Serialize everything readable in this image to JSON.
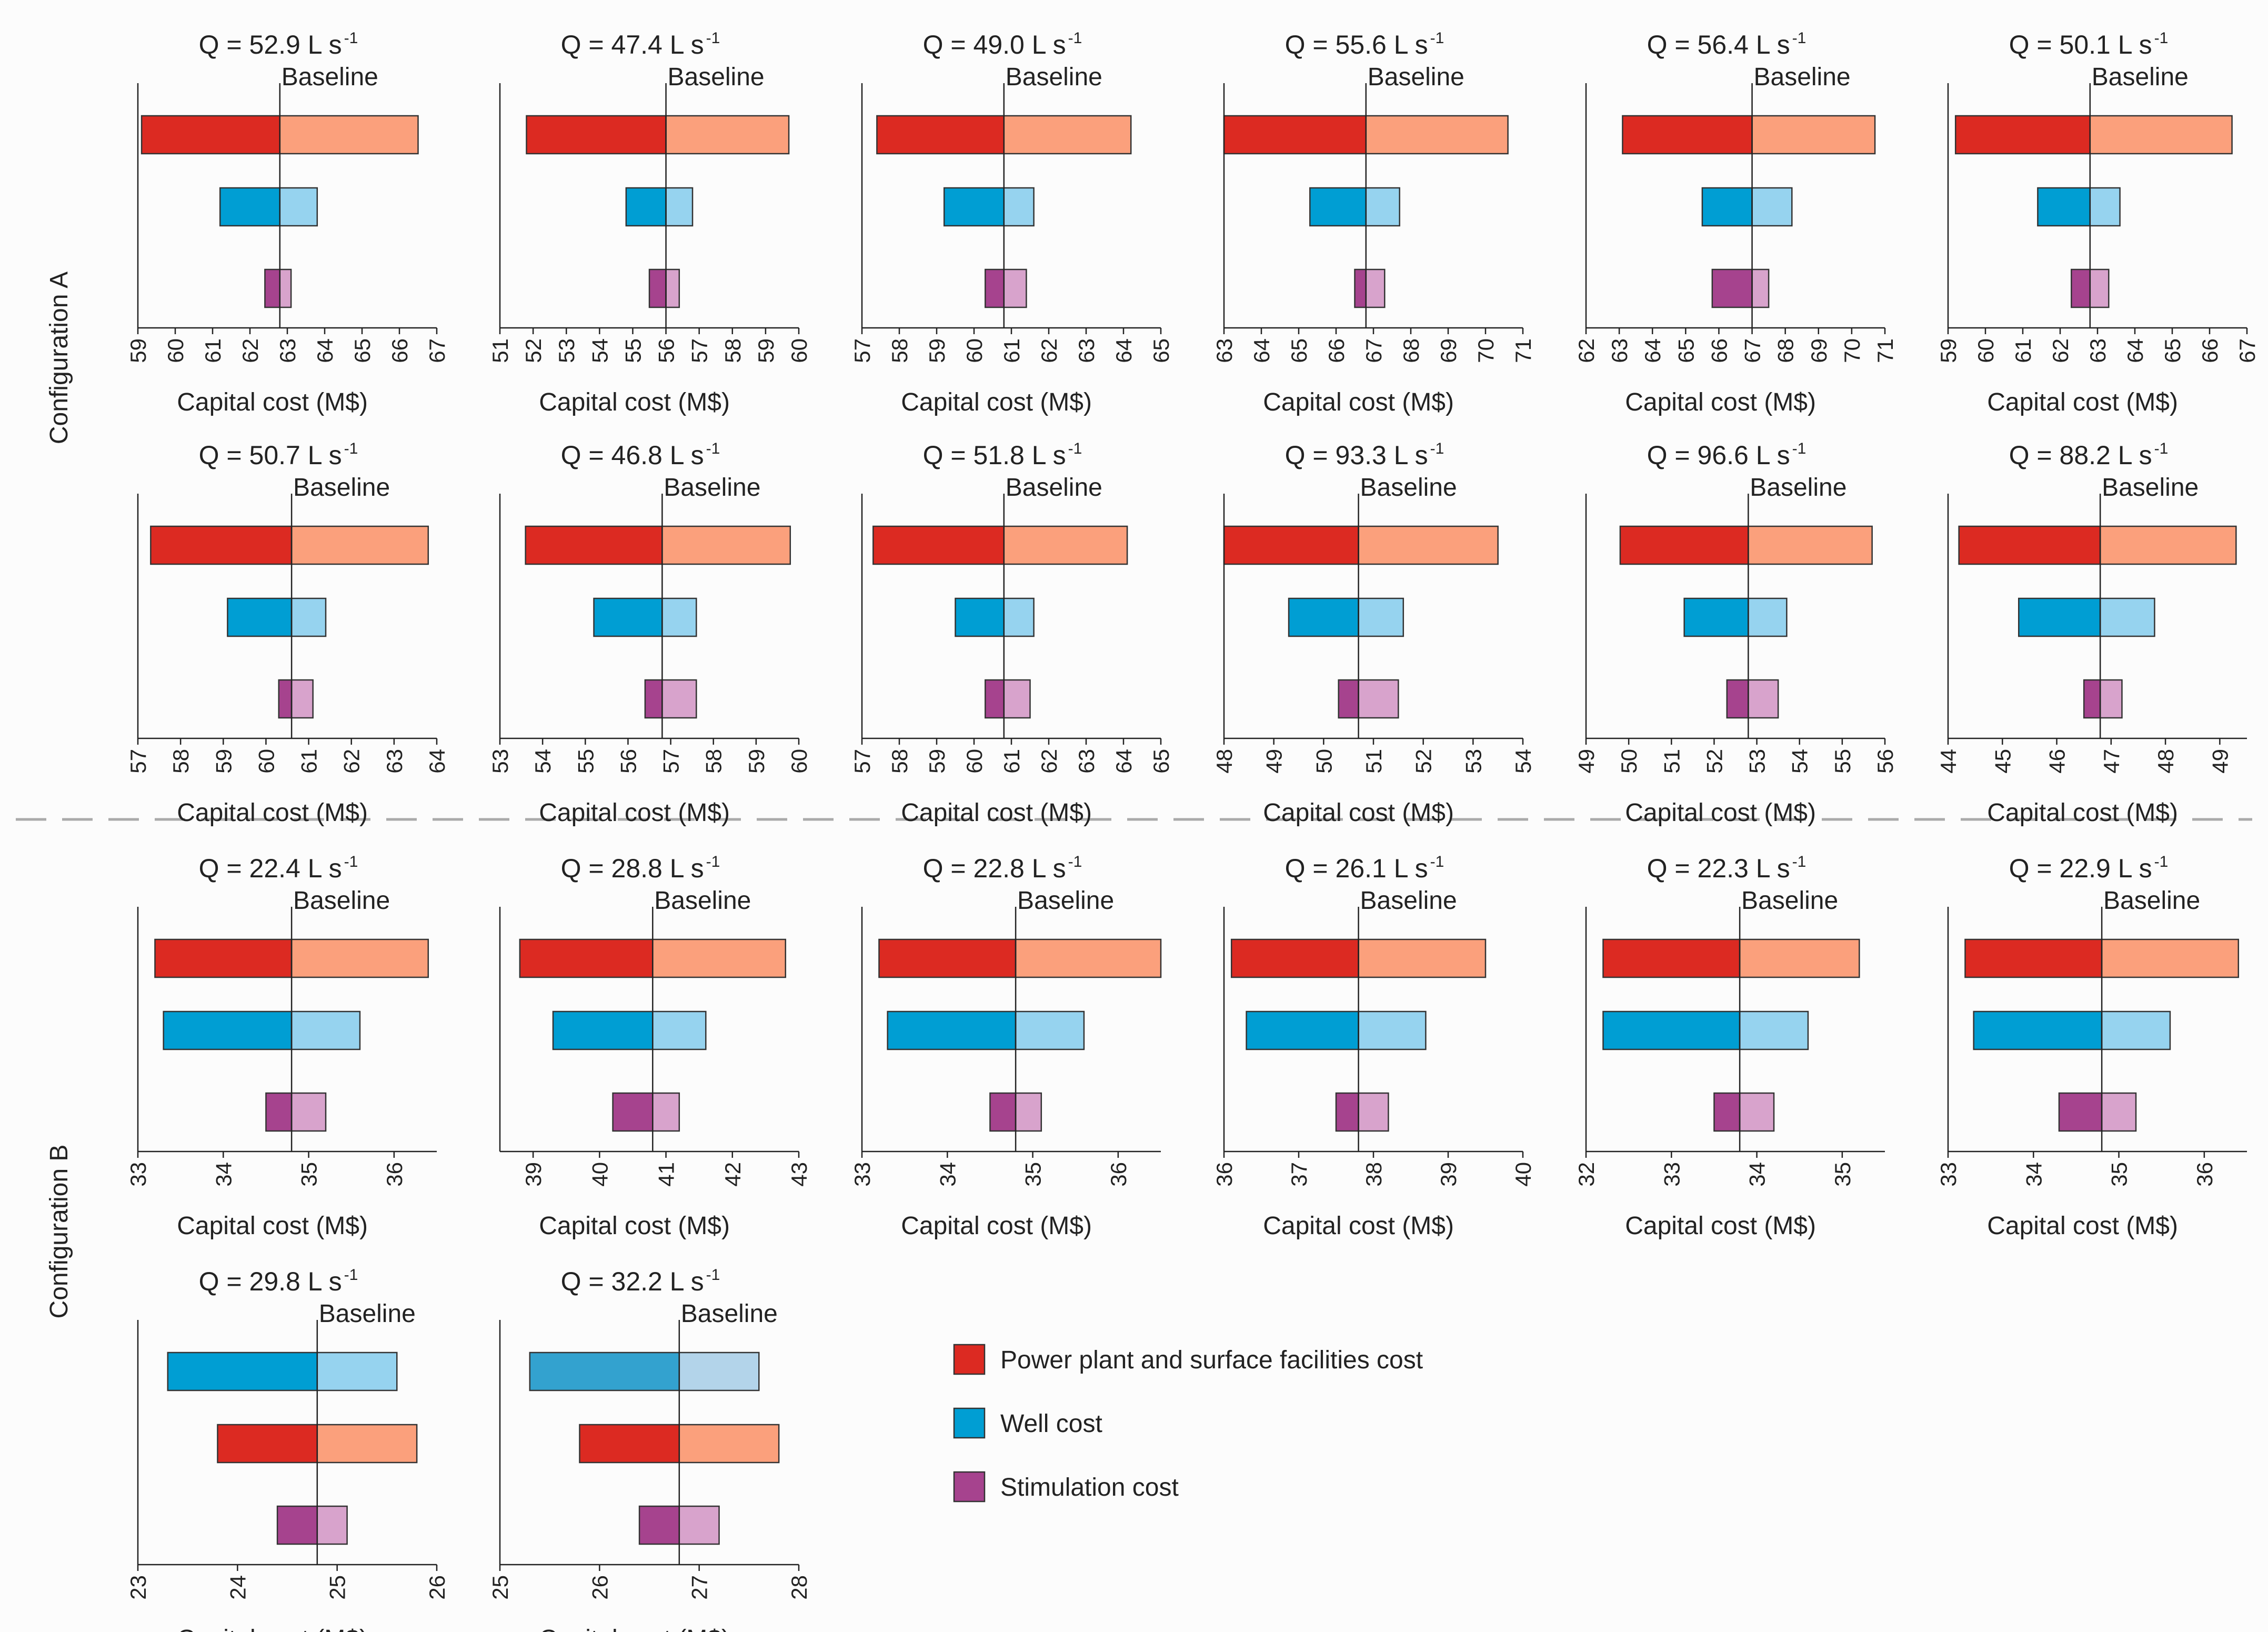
{
  "figure": {
    "config_a_label": "Configuration A",
    "config_b_label": "Configuration B",
    "legend": [
      {
        "key": "power",
        "label": "Power plant and surface facilities cost"
      },
      {
        "key": "well",
        "label": "Well cost"
      },
      {
        "key": "stim",
        "label": "Stimulation cost"
      }
    ],
    "colors": {
      "power": {
        "low": "#dc2a22",
        "high": "#fba07c"
      },
      "well": {
        "low": "#009ed3",
        "high": "#96d3ef"
      },
      "stim": {
        "low": "#a6438e",
        "high": "#d8a3cc"
      },
      "well_alt": {
        "low": "#33a2cf",
        "high": "#b3d4ea"
      },
      "divider": "#aaaaaa"
    }
  },
  "chart_data": [
    {
      "type": "bar",
      "config": "A",
      "title_prefix": "Q = 52.9 L s",
      "title_sup": "-1",
      "baseline_label": "Baseline",
      "xlabel": "Capital cost (M$)",
      "baseline": 62.8,
      "xlim": [
        59,
        67
      ],
      "ticks": [
        59,
        60,
        61,
        62,
        63,
        64,
        65,
        66,
        67
      ],
      "rows": [
        {
          "category": "power",
          "low": 59.1,
          "high": 66.5
        },
        {
          "category": "well",
          "low": 61.2,
          "high": 63.8
        },
        {
          "category": "stim",
          "low": 62.4,
          "high": 63.1
        }
      ]
    },
    {
      "type": "bar",
      "config": "A",
      "title_prefix": "Q = 47.4 L s",
      "title_sup": "-1",
      "baseline_label": "Baseline",
      "xlabel": "Capital cost (M$)",
      "baseline": 56.0,
      "xlim": [
        51,
        60
      ],
      "ticks": [
        51,
        52,
        53,
        54,
        55,
        56,
        57,
        58,
        59,
        60
      ],
      "rows": [
        {
          "category": "power",
          "low": 51.8,
          "high": 59.7
        },
        {
          "category": "well",
          "low": 54.8,
          "high": 56.8
        },
        {
          "category": "stim",
          "low": 55.5,
          "high": 56.4
        }
      ]
    },
    {
      "type": "bar",
      "config": "A",
      "title_prefix": "Q = 49.0 L s",
      "title_sup": "-1",
      "baseline_label": "Baseline",
      "xlabel": "Capital cost (M$)",
      "baseline": 60.8,
      "xlim": [
        57,
        65
      ],
      "ticks": [
        57,
        58,
        59,
        60,
        61,
        62,
        63,
        64,
        65
      ],
      "rows": [
        {
          "category": "power",
          "low": 57.4,
          "high": 64.2
        },
        {
          "category": "well",
          "low": 59.2,
          "high": 61.6
        },
        {
          "category": "stim",
          "low": 60.3,
          "high": 61.4
        }
      ]
    },
    {
      "type": "bar",
      "config": "A",
      "title_prefix": "Q = 55.6 L s",
      "title_sup": "-1",
      "baseline_label": "Baseline",
      "xlabel": "Capital cost (M$)",
      "baseline": 66.8,
      "xlim": [
        63,
        71
      ],
      "ticks": [
        63,
        64,
        65,
        66,
        67,
        68,
        69,
        70,
        71
      ],
      "rows": [
        {
          "category": "power",
          "low": 63.0,
          "high": 70.6
        },
        {
          "category": "well",
          "low": 65.3,
          "high": 67.7
        },
        {
          "category": "stim",
          "low": 66.5,
          "high": 67.3
        }
      ]
    },
    {
      "type": "bar",
      "config": "A",
      "title_prefix": "Q = 56.4 L s",
      "title_sup": "-1",
      "baseline_label": "Baseline",
      "xlabel": "Capital cost (M$)",
      "baseline": 67.0,
      "xlim": [
        62,
        71
      ],
      "ticks": [
        62,
        63,
        64,
        65,
        66,
        67,
        68,
        69,
        70,
        71
      ],
      "rows": [
        {
          "category": "power",
          "low": 63.1,
          "high": 70.7
        },
        {
          "category": "well",
          "low": 65.5,
          "high": 68.2
        },
        {
          "category": "stim",
          "low": 65.8,
          "high": 67.5
        }
      ]
    },
    {
      "type": "bar",
      "config": "A",
      "title_prefix": "Q = 50.1 L s",
      "title_sup": "-1",
      "baseline_label": "Baseline",
      "xlabel": "Capital cost (M$)",
      "baseline": 62.8,
      "xlim": [
        59,
        67
      ],
      "ticks": [
        59,
        60,
        61,
        62,
        63,
        64,
        65,
        66,
        67
      ],
      "rows": [
        {
          "category": "power",
          "low": 59.2,
          "high": 66.6
        },
        {
          "category": "well",
          "low": 61.4,
          "high": 63.6
        },
        {
          "category": "stim",
          "low": 62.3,
          "high": 63.3
        }
      ]
    },
    {
      "type": "bar",
      "config": "A",
      "title_prefix": "Q = 50.7 L s",
      "title_sup": "-1",
      "baseline_label": "Baseline",
      "xlabel": "Capital cost (M$)",
      "baseline": 60.6,
      "xlim": [
        57,
        64
      ],
      "ticks": [
        57,
        58,
        59,
        60,
        61,
        62,
        63,
        64
      ],
      "rows": [
        {
          "category": "power",
          "low": 57.3,
          "high": 63.8
        },
        {
          "category": "well",
          "low": 59.1,
          "high": 61.4
        },
        {
          "category": "stim",
          "low": 60.3,
          "high": 61.1
        }
      ]
    },
    {
      "type": "bar",
      "config": "A",
      "title_prefix": "Q = 46.8 L s",
      "title_sup": "-1",
      "baseline_label": "Baseline",
      "xlabel": "Capital cost (M$)",
      "baseline": 56.8,
      "xlim": [
        53,
        60
      ],
      "ticks": [
        53,
        54,
        55,
        56,
        57,
        58,
        59,
        60
      ],
      "rows": [
        {
          "category": "power",
          "low": 53.6,
          "high": 59.8
        },
        {
          "category": "well",
          "low": 55.2,
          "high": 57.6
        },
        {
          "category": "stim",
          "low": 56.4,
          "high": 57.6
        }
      ]
    },
    {
      "type": "bar",
      "config": "A",
      "title_prefix": "Q = 51.8 L s",
      "title_sup": "-1",
      "baseline_label": "Baseline",
      "xlabel": "Capital cost (M$)",
      "baseline": 60.8,
      "xlim": [
        57,
        65
      ],
      "ticks": [
        57,
        58,
        59,
        60,
        61,
        62,
        63,
        64,
        65
      ],
      "rows": [
        {
          "category": "power",
          "low": 57.3,
          "high": 64.1
        },
        {
          "category": "well",
          "low": 59.5,
          "high": 61.6
        },
        {
          "category": "stim",
          "low": 60.3,
          "high": 61.5
        }
      ]
    },
    {
      "type": "bar",
      "config": "A",
      "title_prefix": "Q = 93.3 L s",
      "title_sup": "-1",
      "baseline_label": "Baseline",
      "xlabel": "Capital cost (M$)",
      "baseline": 50.7,
      "xlim": [
        48,
        54
      ],
      "ticks": [
        48,
        49,
        50,
        51,
        52,
        53,
        54
      ],
      "rows": [
        {
          "category": "power",
          "low": 48.0,
          "high": 53.5
        },
        {
          "category": "well",
          "low": 49.3,
          "high": 51.6
        },
        {
          "category": "stim",
          "low": 50.3,
          "high": 51.5
        }
      ]
    },
    {
      "type": "bar",
      "config": "A",
      "title_prefix": "Q = 96.6 L s",
      "title_sup": "-1",
      "baseline_label": "Baseline",
      "xlabel": "Capital cost (M$)",
      "baseline": 52.8,
      "xlim": [
        49,
        56
      ],
      "ticks": [
        49,
        50,
        51,
        52,
        53,
        54,
        55,
        56
      ],
      "rows": [
        {
          "category": "power",
          "low": 49.8,
          "high": 55.7
        },
        {
          "category": "well",
          "low": 51.3,
          "high": 53.7
        },
        {
          "category": "stim",
          "low": 52.3,
          "high": 53.5
        }
      ]
    },
    {
      "type": "bar",
      "config": "A",
      "title_prefix": "Q = 88.2 L s",
      "title_sup": "-1",
      "baseline_label": "Baseline",
      "xlabel": "Capital cost (M$)",
      "baseline": 46.8,
      "xlim": [
        44,
        49.5
      ],
      "ticks": [
        44,
        45,
        46,
        47,
        48,
        49
      ],
      "rows": [
        {
          "category": "power",
          "low": 44.2,
          "high": 49.3
        },
        {
          "category": "well",
          "low": 45.3,
          "high": 47.8
        },
        {
          "category": "stim",
          "low": 46.5,
          "high": 47.2
        }
      ]
    },
    {
      "type": "bar",
      "config": "B",
      "title_prefix": "Q = 22.4 L s",
      "title_sup": "-1",
      "baseline_label": "Baseline",
      "xlabel": "Capital cost (M$)",
      "baseline": 34.8,
      "xlim": [
        33,
        36.5
      ],
      "ticks": [
        33,
        34,
        35,
        36
      ],
      "rows": [
        {
          "category": "power",
          "low": 33.2,
          "high": 36.4
        },
        {
          "category": "well",
          "low": 33.3,
          "high": 35.6
        },
        {
          "category": "stim",
          "low": 34.5,
          "high": 35.2
        }
      ]
    },
    {
      "type": "bar",
      "config": "B",
      "title_prefix": "Q = 28.8 L s",
      "title_sup": "-1",
      "baseline_label": "Baseline",
      "xlabel": "Capital cost (M$)",
      "baseline": 40.8,
      "xlim": [
        38.5,
        43
      ],
      "ticks": [
        39,
        40,
        41,
        42,
        43
      ],
      "rows": [
        {
          "category": "power",
          "low": 38.8,
          "high": 42.8
        },
        {
          "category": "well",
          "low": 39.3,
          "high": 41.6
        },
        {
          "category": "stim",
          "low": 40.2,
          "high": 41.2
        }
      ]
    },
    {
      "type": "bar",
      "config": "B",
      "title_prefix": "Q = 22.8 L s",
      "title_sup": "-1",
      "baseline_label": "Baseline",
      "xlabel": "Capital cost (M$)",
      "baseline": 34.8,
      "xlim": [
        33,
        36.5
      ],
      "ticks": [
        33,
        34,
        35,
        36
      ],
      "rows": [
        {
          "category": "power",
          "low": 33.2,
          "high": 36.5
        },
        {
          "category": "well",
          "low": 33.3,
          "high": 35.6
        },
        {
          "category": "stim",
          "low": 34.5,
          "high": 35.1
        }
      ]
    },
    {
      "type": "bar",
      "config": "B",
      "title_prefix": "Q = 26.1 L s",
      "title_sup": "-1",
      "baseline_label": "Baseline",
      "xlabel": "Capital cost (M$)",
      "baseline": 37.8,
      "xlim": [
        36,
        40
      ],
      "ticks": [
        36,
        37,
        38,
        39,
        40
      ],
      "rows": [
        {
          "category": "power",
          "low": 36.1,
          "high": 39.5
        },
        {
          "category": "well",
          "low": 36.3,
          "high": 38.7
        },
        {
          "category": "stim",
          "low": 37.5,
          "high": 38.2
        }
      ]
    },
    {
      "type": "bar",
      "config": "B",
      "title_prefix": "Q = 22.3 L s",
      "title_sup": "-1",
      "baseline_label": "Baseline",
      "xlabel": "Capital cost (M$)",
      "baseline": 33.8,
      "xlim": [
        32,
        35.5
      ],
      "ticks": [
        32,
        33,
        34,
        35
      ],
      "rows": [
        {
          "category": "power",
          "low": 32.2,
          "high": 35.2
        },
        {
          "category": "well",
          "low": 32.2,
          "high": 34.6
        },
        {
          "category": "stim",
          "low": 33.5,
          "high": 34.2
        }
      ]
    },
    {
      "type": "bar",
      "config": "B",
      "title_prefix": "Q = 22.9 L s",
      "title_sup": "-1",
      "baseline_label": "Baseline",
      "xlabel": "Capital cost (M$)",
      "baseline": 34.8,
      "xlim": [
        33,
        36.5
      ],
      "ticks": [
        33,
        34,
        35,
        36
      ],
      "rows": [
        {
          "category": "power",
          "low": 33.2,
          "high": 36.4
        },
        {
          "category": "well",
          "low": 33.3,
          "high": 35.6
        },
        {
          "category": "stim",
          "low": 34.3,
          "high": 35.2
        }
      ]
    },
    {
      "type": "bar",
      "config": "B",
      "title_prefix": "Q = 29.8 L s",
      "title_sup": "-1",
      "baseline_label": "Baseline",
      "xlabel": "Capital cost (M$)",
      "baseline": 24.8,
      "xlim": [
        23,
        26
      ],
      "ticks": [
        23,
        24,
        25,
        26
      ],
      "rows": [
        {
          "category": "well",
          "low": 23.3,
          "high": 25.6
        },
        {
          "category": "power",
          "low": 23.8,
          "high": 25.8
        },
        {
          "category": "stim",
          "low": 24.4,
          "high": 25.1
        }
      ]
    },
    {
      "type": "bar",
      "config": "B",
      "title_prefix": "Q = 32.2 L s",
      "title_sup": "-1",
      "baseline_label": "Baseline",
      "xlabel": "Capital cost (M$)",
      "baseline": 26.8,
      "xlim": [
        25,
        28
      ],
      "ticks": [
        25,
        26,
        27,
        28
      ],
      "rows": [
        {
          "category": "well_alt",
          "low": 25.3,
          "high": 27.6
        },
        {
          "category": "power",
          "low": 25.8,
          "high": 27.8
        },
        {
          "category": "stim",
          "low": 26.4,
          "high": 27.2
        }
      ]
    }
  ]
}
